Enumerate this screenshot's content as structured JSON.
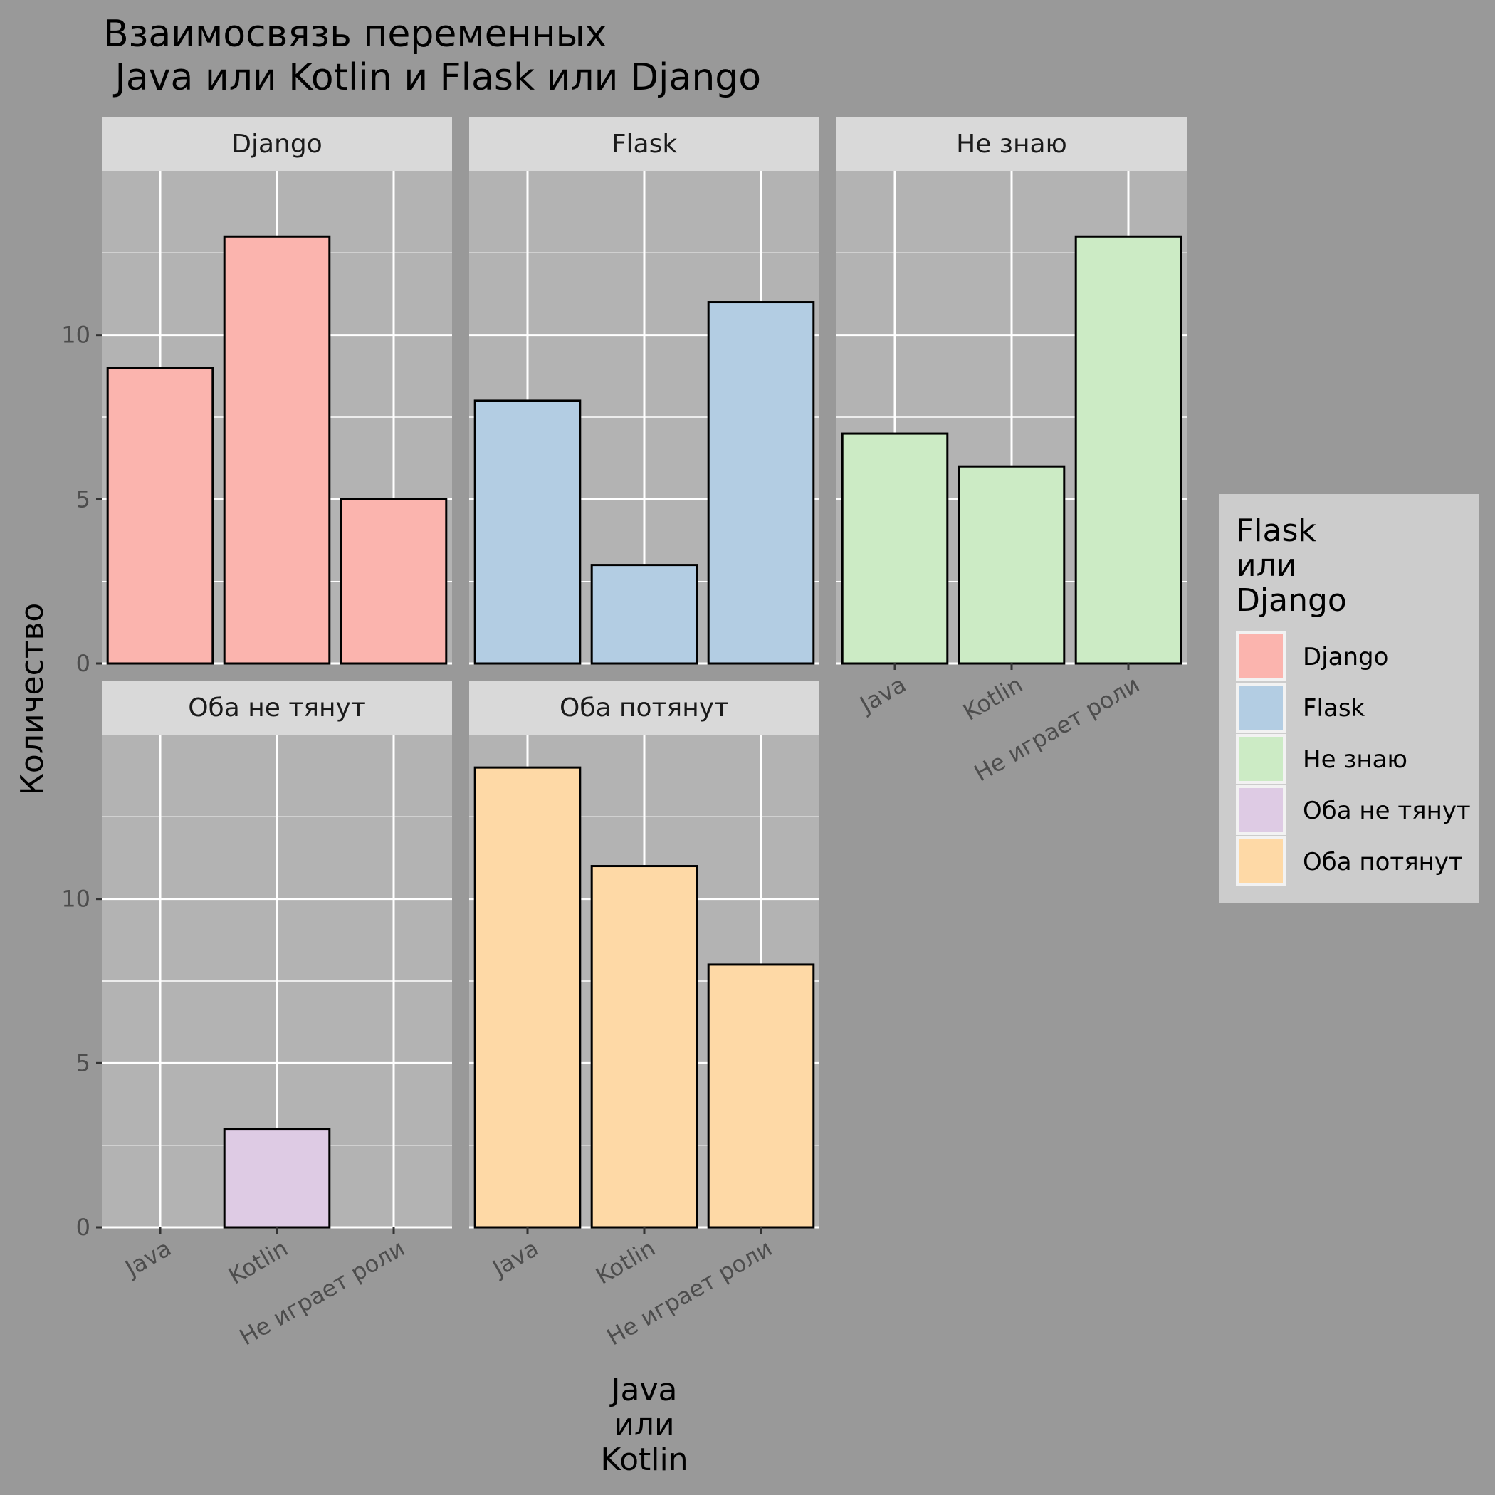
{
  "title_lines": [
    "Взаимосвязь переменных",
    " Java или Kotlin и Flask или Django"
  ],
  "chart_data": {
    "type": "bar",
    "facet_by": "Flask или Django",
    "categories": [
      "Java",
      "Kotlin",
      "Не играет роли"
    ],
    "xlabel_lines": [
      "Java",
      "или",
      "Kotlin"
    ],
    "ylabel": "Количество",
    "ylim": [
      0,
      15
    ],
    "yticks": [
      0,
      5,
      10
    ],
    "grid": true,
    "legend_position": "right",
    "legend_title_lines": [
      "Flask",
      "или",
      "Django"
    ],
    "series": [
      {
        "name": "Django",
        "color": "#FBB4AE",
        "values": [
          9,
          13,
          5
        ]
      },
      {
        "name": "Flask",
        "color": "#B3CDE3",
        "values": [
          8,
          3,
          11
        ]
      },
      {
        "name": "Не знаю",
        "color": "#CCEBC5",
        "values": [
          7,
          6,
          13
        ]
      },
      {
        "name": "Оба не тянут",
        "color": "#DECBE4",
        "values": [
          0,
          3,
          0
        ]
      },
      {
        "name": "Оба потянут",
        "color": "#FED9A6",
        "values": [
          14,
          11,
          8
        ]
      }
    ]
  },
  "colors": {
    "background": "#999999",
    "panel": "#B3B3B3",
    "strip": "#D9D9D9",
    "legend_bg": "#CCCCCC",
    "grid": "#FFFFFF"
  }
}
